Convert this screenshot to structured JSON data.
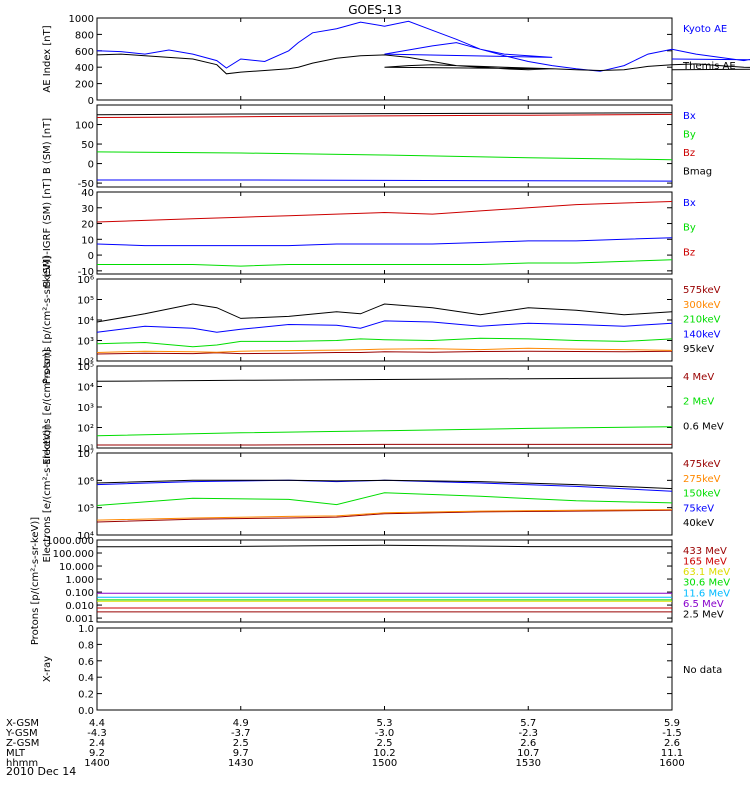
{
  "title": "GOES-13",
  "date": "2010 Dec 14",
  "colors": {
    "black": "#000000",
    "blue": "#0000ff",
    "green": "#00dd00",
    "red": "#cc0000",
    "darkred": "#990000",
    "orange": "#ff8800",
    "yellow": "#dddd00",
    "cyan": "#00bbff",
    "purple": "#8800cc"
  },
  "chart_data": [
    {
      "type": "line",
      "panel": "ae",
      "ylabel": "AE Index [nT]",
      "ylim": [
        0,
        1000
      ],
      "yticks": [
        0,
        200,
        400,
        600,
        800,
        1000
      ],
      "yticklabels": [
        "0",
        "200",
        "400",
        "600",
        "800",
        "1000"
      ],
      "x": [
        1400,
        1405,
        1410,
        1415,
        1420,
        1425,
        1427,
        1430,
        1435,
        1440,
        1442,
        1445,
        1450,
        1455,
        1460,
        1465,
        1470,
        1475,
        1480,
        1485,
        1490,
        1495,
        1500,
        1505,
        1510,
        1515,
        1520,
        1525,
        1530,
        1535,
        1540,
        1545,
        1550,
        1555,
        1560,
        1565,
        1570,
        1575,
        1580,
        1585,
        1590,
        1595,
        1600
      ],
      "series": [
        {
          "name": "Kyoto AE",
          "color": "blue",
          "values": [
            600,
            590,
            560,
            610,
            560,
            480,
            390,
            500,
            470,
            600,
            700,
            820,
            870,
            950,
            900,
            960,
            850,
            740,
            620,
            560,
            540,
            520,
            560,
            610,
            660,
            700,
            620,
            540,
            470,
            420,
            380,
            350,
            420,
            560,
            620,
            560,
            520,
            480,
            540,
            520,
            500,
            480,
            500
          ]
        },
        {
          "name": "Themis AE",
          "color": "black",
          "values": [
            550,
            560,
            540,
            520,
            500,
            430,
            320,
            340,
            360,
            380,
            400,
            450,
            510,
            540,
            550,
            520,
            470,
            420,
            400,
            380,
            370,
            380,
            400,
            420,
            430,
            420,
            410,
            400,
            390,
            380,
            370,
            360,
            370,
            410,
            430,
            440,
            420,
            400,
            390,
            390,
            380,
            380,
            370
          ]
        }
      ]
    },
    {
      "type": "line",
      "panel": "bsm",
      "ylabel": "B (SM) [nT]",
      "ylim": [
        -60,
        150
      ],
      "yticks": [
        -50,
        0,
        50,
        100
      ],
      "yticklabels": [
        "-50",
        "0",
        "50",
        "100"
      ],
      "x": [
        1400,
        1430,
        1500,
        1530,
        1600
      ],
      "series": [
        {
          "name": "Bx",
          "color": "blue",
          "values": [
            -42,
            -42,
            -43,
            -44,
            -45
          ]
        },
        {
          "name": "By",
          "color": "green",
          "values": [
            30,
            27,
            22,
            15,
            10
          ]
        },
        {
          "name": "Bz",
          "color": "red",
          "values": [
            118,
            120,
            122,
            124,
            126
          ]
        },
        {
          "name": "Bmag",
          "color": "black",
          "values": [
            125,
            127,
            128,
            129,
            130
          ]
        }
      ]
    },
    {
      "type": "line",
      "panel": "bigrf",
      "ylabel": "B (SM)-IGRF (SM) [nT]",
      "ylim": [
        -12,
        40
      ],
      "yticks": [
        -10,
        0,
        10,
        20,
        30,
        40
      ],
      "yticklabels": [
        "-10",
        "0",
        "10",
        "20",
        "30",
        "40"
      ],
      "x": [
        1400,
        1410,
        1420,
        1430,
        1440,
        1450,
        1500,
        1510,
        1520,
        1530,
        1540,
        1550,
        1600
      ],
      "series": [
        {
          "name": "Bx",
          "color": "blue",
          "values": [
            7,
            6,
            6,
            6,
            6,
            7,
            7,
            7,
            8,
            9,
            9,
            10,
            11
          ]
        },
        {
          "name": "By",
          "color": "green",
          "values": [
            -6,
            -6,
            -6,
            -7,
            -6,
            -6,
            -6,
            -6,
            -6,
            -5,
            -5,
            -4,
            -3
          ]
        },
        {
          "name": "Bz",
          "color": "red",
          "values": [
            21,
            22,
            23,
            24,
            25,
            26,
            27,
            26,
            28,
            30,
            32,
            33,
            34
          ]
        }
      ]
    },
    {
      "type": "line",
      "panel": "protons",
      "ylabel": "Protons [p/(cm²-s-sr-keV)]",
      "yscale": "log",
      "ylim": [
        100,
        1000000
      ],
      "yticks": [
        100,
        1000,
        10000,
        100000,
        1000000
      ],
      "yticklabels": [
        "10²",
        "10³",
        "10⁴",
        "10⁵",
        "10⁶"
      ],
      "x": [
        1400,
        1410,
        1420,
        1425,
        1430,
        1440,
        1450,
        1455,
        1500,
        1510,
        1520,
        1530,
        1540,
        1550,
        1600
      ],
      "series": [
        {
          "name": "575keV",
          "color": "darkred",
          "values": [
            220,
            240,
            230,
            250,
            230,
            240,
            260,
            260,
            280,
            270,
            290,
            300,
            290,
            280,
            300
          ]
        },
        {
          "name": "300keV",
          "color": "orange",
          "values": [
            260,
            300,
            280,
            270,
            300,
            320,
            340,
            350,
            380,
            400,
            360,
            420,
            380,
            360,
            330
          ]
        },
        {
          "name": "210keV",
          "color": "green",
          "values": [
            700,
            800,
            500,
            600,
            900,
            900,
            1000,
            1200,
            1100,
            1000,
            1300,
            1200,
            1000,
            900,
            1200
          ]
        },
        {
          "name": "140keV",
          "color": "blue",
          "values": [
            2500,
            5000,
            4000,
            2500,
            3500,
            6000,
            5500,
            4000,
            9000,
            8000,
            5000,
            7000,
            6000,
            5000,
            7000
          ]
        },
        {
          "name": "95keV",
          "color": "black",
          "values": [
            8000,
            20000,
            60000,
            40000,
            12000,
            15000,
            25000,
            20000,
            60000,
            40000,
            18000,
            40000,
            30000,
            18000,
            25000
          ]
        }
      ]
    },
    {
      "type": "line",
      "panel": "electrons_mev",
      "ylabel": "Electrons [e/(cm²-s-sr)]",
      "yscale": "log",
      "ylim": [
        10,
        100000
      ],
      "yticks": [
        10,
        100,
        1000,
        10000,
        100000
      ],
      "yticklabels": [
        "10¹",
        "10²",
        "10³",
        "10⁴",
        "10⁵"
      ],
      "x": [
        1400,
        1430,
        1500,
        1530,
        1600
      ],
      "series": [
        {
          "name": "4 MeV",
          "color": "darkred",
          "values": [
            14,
            14,
            15,
            15,
            15
          ]
        },
        {
          "name": "2 MeV",
          "color": "green",
          "values": [
            40,
            55,
            70,
            90,
            110
          ]
        },
        {
          "name": "0.6 MeV",
          "color": "black",
          "values": [
            18000,
            20000,
            22000,
            24000,
            26000
          ]
        }
      ]
    },
    {
      "type": "line",
      "panel": "electrons_kev",
      "ylabel": "Electrons [e/(cm²-s-sr-keV)]",
      "yscale": "log",
      "ylim": [
        10000,
        10000000
      ],
      "yticks": [
        10000,
        100000,
        1000000,
        10000000
      ],
      "yticklabels": [
        "10⁴",
        "10⁵",
        "10⁶",
        "10⁷"
      ],
      "x": [
        1400,
        1420,
        1440,
        1450,
        1500,
        1520,
        1540,
        1600
      ],
      "series": [
        {
          "name": "475keV",
          "color": "darkred",
          "values": [
            30000,
            38000,
            42000,
            45000,
            60000,
            70000,
            75000,
            80000
          ]
        },
        {
          "name": "275keV",
          "color": "orange",
          "values": [
            35000,
            42000,
            48000,
            50000,
            65000,
            75000,
            80000,
            85000
          ]
        },
        {
          "name": "150keV",
          "color": "green",
          "values": [
            120000,
            220000,
            200000,
            130000,
            350000,
            260000,
            180000,
            150000
          ]
        },
        {
          "name": "75keV",
          "color": "blue",
          "values": [
            700000,
            900000,
            1000000,
            900000,
            1000000,
            800000,
            600000,
            400000
          ]
        },
        {
          "name": "40keV",
          "color": "black",
          "values": [
            800000,
            1000000,
            1000000,
            950000,
            1000000,
            900000,
            700000,
            500000
          ]
        }
      ]
    },
    {
      "type": "line",
      "panel": "protons_mev",
      "ylabel": "Protons [p/(cm²-s-sr-keV)]",
      "yscale": "log",
      "ylim": [
        0.0005,
        1000
      ],
      "yticks": [
        0.001,
        0.01,
        0.1,
        1,
        10,
        100,
        1000
      ],
      "yticklabels": [
        "0.001",
        "0.010",
        "0.100",
        "1.000",
        "10.000",
        "100.000",
        "1000.000"
      ],
      "x": [
        1400,
        1430,
        1500,
        1530,
        1600
      ],
      "series": [
        {
          "name": "433 MeV",
          "color": "darkred",
          "values": [
            0.003,
            0.003,
            0.003,
            0.003,
            0.003
          ]
        },
        {
          "name": "165 MeV",
          "color": "red",
          "values": [
            0.006,
            0.006,
            0.006,
            0.006,
            0.006
          ]
        },
        {
          "name": "63.1 MeV",
          "color": "yellow",
          "values": [
            0.02,
            0.02,
            0.02,
            0.02,
            0.02
          ]
        },
        {
          "name": "30.6 MeV",
          "color": "green",
          "values": [
            0.025,
            0.025,
            0.025,
            0.025,
            0.025
          ]
        },
        {
          "name": "11.6 MeV",
          "color": "cyan",
          "values": [
            0.04,
            0.04,
            0.04,
            0.04,
            0.04
          ]
        },
        {
          "name": "6.5 MeV",
          "color": "purple",
          "values": [
            0.08,
            0.08,
            0.08,
            0.08,
            0.08
          ]
        },
        {
          "name": "2.5 MeV",
          "color": "black",
          "values": [
            300,
            320,
            400,
            310,
            300
          ]
        }
      ]
    },
    {
      "type": "line",
      "panel": "xray",
      "ylabel": "X-ray",
      "ylim": [
        0,
        1
      ],
      "yticks": [
        0,
        0.2,
        0.4,
        0.6,
        0.8,
        1.0
      ],
      "yticklabels": [
        "0.0",
        "0.2",
        "0.4",
        "0.6",
        "0.8",
        "1.0"
      ],
      "x": [],
      "series": [],
      "note": "No data"
    }
  ],
  "xaxis": {
    "ticks": [
      1400,
      1430,
      1500,
      1530,
      1600
    ],
    "rows": [
      {
        "label": "X-GSM",
        "values": [
          "4.4",
          "4.9",
          "5.3",
          "5.7",
          "5.9"
        ]
      },
      {
        "label": "Y-GSM",
        "values": [
          "-4.3",
          "-3.7",
          "-3.0",
          "-2.3",
          "-1.5"
        ]
      },
      {
        "label": "Z-GSM",
        "values": [
          "2.4",
          "2.5",
          "2.5",
          "2.6",
          "2.6"
        ]
      },
      {
        "label": "MLT",
        "values": [
          "9.2",
          "9.7",
          "10.2",
          "10.7",
          "11.1"
        ]
      },
      {
        "label": "hhmm",
        "values": [
          "1400",
          "1430",
          "1500",
          "1530",
          "1600"
        ]
      }
    ]
  }
}
